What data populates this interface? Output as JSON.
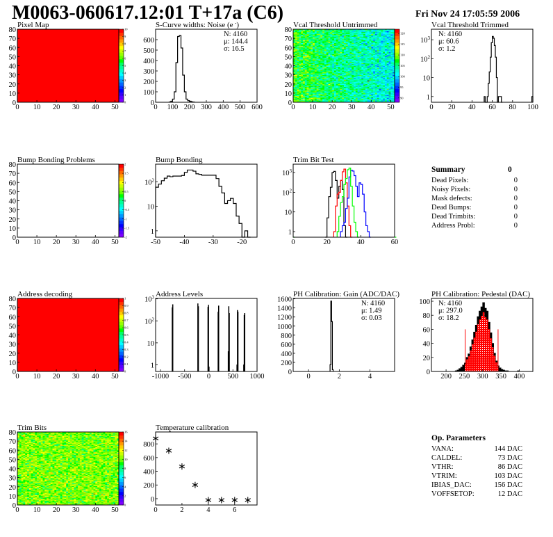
{
  "header": {
    "title": "M0063-060617.12:01 T+17a (C6)",
    "date": "Fri Nov 24 17:05:59 2006"
  },
  "palette": [
    "#7f00ff",
    "#5a00ff",
    "#3300ff",
    "#0000ff",
    "#0033ff",
    "#0066ff",
    "#0099ff",
    "#00ccff",
    "#00ffff",
    "#00ffcc",
    "#00ff99",
    "#00ff66",
    "#00ff00",
    "#66ff00",
    "#99ff00",
    "#ccff00",
    "#ffff00",
    "#ffcc00",
    "#ff9900",
    "#ff6600",
    "#ff3300",
    "#ff0000"
  ],
  "chart_data": [
    {
      "title": "Pixel Map",
      "type": "heatmap",
      "xlim": [
        0,
        52
      ],
      "ylim": [
        0,
        80
      ],
      "zlim": [
        0,
        10
      ],
      "xticks": [
        0,
        10,
        20,
        30,
        40,
        50
      ],
      "yticks": [
        0,
        10,
        20,
        30,
        40,
        50,
        60,
        70,
        80
      ],
      "zticks": [
        0,
        1,
        2,
        3,
        4,
        5,
        6,
        7,
        8,
        9,
        10
      ],
      "uniform_value": 10
    },
    {
      "title": "S-Curve widths: Noise (e",
      "title_sup": "-",
      "title_end": ")",
      "type": "bar",
      "xlim": [
        0,
        600
      ],
      "ylim": [
        0,
        700
      ],
      "xticks": [
        0,
        100,
        200,
        300,
        400,
        500,
        600
      ],
      "yticks": [
        0,
        100,
        200,
        300,
        400,
        500,
        600
      ],
      "bin_width": 10,
      "bins": [
        [
          80,
          3
        ],
        [
          90,
          10
        ],
        [
          100,
          30
        ],
        [
          110,
          100
        ],
        [
          120,
          380
        ],
        [
          130,
          630
        ],
        [
          140,
          640
        ],
        [
          150,
          520
        ],
        [
          160,
          260
        ],
        [
          170,
          100
        ],
        [
          180,
          30
        ],
        [
          190,
          15
        ],
        [
          200,
          10
        ],
        [
          210,
          4
        ],
        [
          220,
          2
        ]
      ],
      "stats": [
        {
          "text": "N: 4160",
          "color": "#000000"
        },
        {
          "text": "μ: 144.4",
          "color": "#000000"
        },
        {
          "text": "σ: 16.5",
          "color": "#000000"
        }
      ],
      "stats_pos": "top-right"
    },
    {
      "title": "Vcal Threshold Untrimmed",
      "type": "heatmap",
      "xlim": [
        0,
        52
      ],
      "ylim": [
        0,
        80
      ],
      "zlim": [
        88,
        122
      ],
      "xticks": [
        0,
        10,
        20,
        30,
        40,
        50
      ],
      "yticks": [
        0,
        10,
        20,
        30,
        40,
        50,
        60,
        70,
        80
      ],
      "zticks": [
        90,
        95,
        100,
        105,
        110,
        115,
        120
      ]
    },
    {
      "title": "Vcal Threshold Trimmed",
      "type": "bar",
      "log_y": true,
      "xlim": [
        0,
        100
      ],
      "ylim": [
        0.5,
        3600
      ],
      "xticks": [
        0,
        20,
        40,
        60,
        80,
        100
      ],
      "yticks": [
        1,
        10,
        100,
        1000
      ],
      "bin_width": 1,
      "bins": [
        [
          52,
          1
        ],
        [
          53,
          0
        ],
        [
          54,
          0
        ],
        [
          55,
          1
        ],
        [
          56,
          5
        ],
        [
          57,
          20
        ],
        [
          58,
          120
        ],
        [
          59,
          700
        ],
        [
          60,
          1500
        ],
        [
          61,
          1200
        ],
        [
          62,
          500
        ],
        [
          63,
          120
        ],
        [
          64,
          10
        ],
        [
          65,
          0
        ],
        [
          66,
          1
        ],
        [
          67,
          1
        ],
        [
          68,
          1
        ],
        [
          69,
          0
        ],
        [
          99,
          1
        ]
      ],
      "stats": [
        {
          "text": "N: 4160",
          "color": "#000000"
        },
        {
          "text": "μ: 60.6",
          "color": "#000000"
        },
        {
          "text": "σ:  1.2",
          "color": "#000000"
        }
      ],
      "stats_pos": "top-left"
    },
    {
      "title": "Bump Bonding Problems",
      "type": "heatmap",
      "xlim": [
        0,
        52
      ],
      "ylim": [
        0,
        80
      ],
      "zlim": [
        -2,
        2
      ],
      "xticks": [
        0,
        10,
        20,
        30,
        40,
        50
      ],
      "yticks": [
        0,
        10,
        20,
        30,
        40,
        50,
        60,
        70,
        80
      ],
      "zticks": [
        -2,
        -1.5,
        -1,
        -0.5,
        0,
        0.5,
        1,
        1.5,
        2
      ],
      "empty": true
    },
    {
      "title": "Bump Bonding",
      "type": "bar",
      "log_y": true,
      "xlim": [
        -50,
        -14.75
      ],
      "ylim": [
        0.55,
        520
      ],
      "xticks": [
        -50,
        -40,
        -30,
        -20
      ],
      "yticks": [
        1,
        10,
        100
      ],
      "bin_width": 1,
      "bins": [
        [
          -50,
          60
        ],
        [
          -49,
          80
        ],
        [
          -48,
          110
        ],
        [
          -47,
          140
        ],
        [
          -46,
          170
        ],
        [
          -45,
          160
        ],
        [
          -44,
          170
        ],
        [
          -43,
          170
        ],
        [
          -42,
          170
        ],
        [
          -41,
          180
        ],
        [
          -40,
          240
        ],
        [
          -39,
          300
        ],
        [
          -38,
          300
        ],
        [
          -37,
          270
        ],
        [
          -36,
          210
        ],
        [
          -35,
          200
        ],
        [
          -34,
          185
        ],
        [
          -33,
          185
        ],
        [
          -32,
          185
        ],
        [
          -31,
          185
        ],
        [
          -30,
          185
        ],
        [
          -29,
          135
        ],
        [
          -28,
          65
        ],
        [
          -27,
          35
        ],
        [
          -26,
          13
        ],
        [
          -25,
          17
        ],
        [
          -24,
          21
        ],
        [
          -23,
          13
        ],
        [
          -22,
          4
        ],
        [
          -21,
          2
        ],
        [
          -20,
          0
        ],
        [
          -19,
          1
        ],
        [
          -18,
          0
        ]
      ]
    },
    {
      "title": "Trim Bit Test",
      "type": "bar",
      "log_y": true,
      "xlim": [
        0,
        60
      ],
      "ylim": [
        0.52,
        2680
      ],
      "xticks": [
        0,
        20,
        40,
        60
      ],
      "yticks": [
        1,
        10,
        100,
        1000
      ],
      "bin_width": 1,
      "series": [
        {
          "color": "#000000",
          "bins": [
            [
              19,
              0
            ],
            [
              20,
              5
            ],
            [
              21,
              60
            ],
            [
              22,
              180
            ],
            [
              23,
              1000
            ],
            [
              24,
              1150
            ],
            [
              25,
              400
            ],
            [
              26,
              50
            ],
            [
              27,
              200
            ],
            [
              28,
              400
            ],
            [
              29,
              140
            ],
            [
              30,
              2
            ],
            [
              31,
              0
            ]
          ]
        },
        {
          "color": "#ff0000",
          "bins": [
            [
              24,
              1
            ],
            [
              25,
              20
            ],
            [
              26,
              80
            ],
            [
              27,
              100
            ],
            [
              28,
              400
            ],
            [
              29,
              1100
            ],
            [
              30,
              1500
            ],
            [
              31,
              300
            ],
            [
              32,
              20
            ],
            [
              33,
              2
            ],
            [
              34,
              0
            ]
          ]
        },
        {
          "color": "#0000ff",
          "bins": [
            [
              28,
              1
            ],
            [
              29,
              2
            ],
            [
              30,
              3
            ],
            [
              31,
              15
            ],
            [
              32,
              50
            ],
            [
              33,
              600
            ],
            [
              34,
              1300
            ],
            [
              35,
              1200
            ],
            [
              36,
              700
            ],
            [
              37,
              200
            ],
            [
              38,
              60
            ],
            [
              39,
              300
            ],
            [
              40,
              250
            ],
            [
              41,
              80
            ],
            [
              42,
              10
            ],
            [
              43,
              2
            ],
            [
              44,
              1
            ],
            [
              45,
              0
            ]
          ]
        },
        {
          "color": "#00ff00",
          "bins": [
            [
              0,
              0
            ],
            [
              26,
              1
            ],
            [
              27,
              6
            ],
            [
              28,
              30
            ],
            [
              29,
              60
            ],
            [
              30,
              250
            ],
            [
              31,
              500
            ],
            [
              32,
              1400
            ],
            [
              33,
              1700
            ],
            [
              34,
              200
            ],
            [
              35,
              20
            ],
            [
              36,
              3
            ],
            [
              37,
              1
            ],
            [
              38,
              0
            ],
            [
              60,
              0
            ]
          ]
        }
      ]
    },
    {
      "title": "Address decoding",
      "type": "heatmap",
      "xlim": [
        0,
        52
      ],
      "ylim": [
        0,
        80
      ],
      "zlim": [
        0,
        1
      ],
      "xticks": [
        0,
        10,
        20,
        30,
        40,
        50
      ],
      "yticks": [
        0,
        10,
        20,
        30,
        40,
        50,
        60,
        70,
        80
      ],
      "zticks": [
        0,
        0.1,
        0.2,
        0.3,
        0.4,
        0.5,
        0.6,
        0.7,
        0.8,
        0.9,
        1
      ],
      "uniform_value": 1
    },
    {
      "title": "Address Levels",
      "type": "bar",
      "log_y": true,
      "filled": true,
      "xlim": [
        -1100,
        1000
      ],
      "ylim": [
        0.5,
        1050
      ],
      "xticks": [
        -1000,
        -500,
        0,
        500,
        1000
      ],
      "yticks": [
        1,
        10,
        100,
        1000
      ],
      "bin_width": 10,
      "bins": [
        [
          -760,
          400
        ],
        [
          -750,
          550
        ],
        [
          -230,
          600
        ],
        [
          -220,
          450
        ],
        [
          -20,
          420
        ],
        [
          -10,
          520
        ],
        [
          0,
          0.8
        ],
        [
          190,
          250
        ],
        [
          200,
          480
        ],
        [
          400,
          4
        ],
        [
          410,
          450
        ],
        [
          420,
          220
        ],
        [
          580,
          1
        ],
        [
          590,
          300
        ],
        [
          600,
          250
        ],
        [
          720,
          1
        ],
        [
          730,
          180
        ],
        [
          740,
          220
        ]
      ]
    },
    {
      "title": "PH Calibration: Gain (ADC/DAC)",
      "type": "bar",
      "xlim": [
        -1,
        5.6
      ],
      "ylim": [
        0,
        1610
      ],
      "xticks": [
        0,
        2,
        4
      ],
      "yticks": [
        0,
        200,
        400,
        600,
        800,
        1000,
        1200,
        1400,
        1600
      ],
      "bin_width": 0.05,
      "bins": [
        [
          1.4,
          150
        ],
        [
          1.45,
          1550
        ],
        [
          1.5,
          1100
        ],
        [
          1.55,
          40
        ]
      ],
      "stats": [
        {
          "text": "N: 4160",
          "color": "#000000"
        },
        {
          "text": "μ: 1.49",
          "color": "#000000"
        },
        {
          "text": "σ: 0.03",
          "color": "#000000"
        }
      ],
      "stats_pos": "top-right"
    },
    {
      "title": "PH Calibration: Pedestal (DAC)",
      "type": "bar",
      "filled": true,
      "xlim": [
        160,
        437
      ],
      "ylim": [
        0,
        104
      ],
      "xticks": [
        200,
        250,
        300,
        350,
        400
      ],
      "yticks": [
        0,
        20,
        40,
        60,
        80,
        100
      ],
      "bin_width": 5,
      "bins": [
        [
          225,
          1
        ],
        [
          230,
          2
        ],
        [
          235,
          4
        ],
        [
          240,
          6
        ],
        [
          245,
          9
        ],
        [
          250,
          12
        ],
        [
          255,
          20
        ],
        [
          260,
          25
        ],
        [
          265,
          35
        ],
        [
          270,
          45
        ],
        [
          275,
          56
        ],
        [
          280,
          66
        ],
        [
          285,
          78
        ],
        [
          290,
          86
        ],
        [
          295,
          92
        ],
        [
          300,
          98
        ],
        [
          305,
          90
        ],
        [
          310,
          86
        ],
        [
          315,
          70
        ],
        [
          320,
          55
        ],
        [
          325,
          40
        ],
        [
          330,
          26
        ],
        [
          335,
          15
        ],
        [
          340,
          8
        ],
        [
          345,
          5
        ],
        [
          350,
          3
        ],
        [
          355,
          2
        ],
        [
          360,
          1
        ],
        [
          365,
          1
        ],
        [
          395,
          1
        ]
      ],
      "fit": {
        "mean": 297.0,
        "sigma": 18.2,
        "range": [
          252,
          342
        ],
        "color": "#ff0000"
      },
      "stats": [
        {
          "text": "N: 4160",
          "color": "#000000"
        },
        {
          "text": "μ: 297.0",
          "color": "#ff0000"
        },
        {
          "text": "σ: 18.2",
          "color": "#ff0000"
        }
      ],
      "stats_pos": "top-left"
    },
    {
      "title": "Trim Bits",
      "type": "heatmap",
      "xlim": [
        0,
        52
      ],
      "ylim": [
        0,
        80
      ],
      "zlim": [
        0,
        16
      ],
      "xticks": [
        0,
        10,
        20,
        30,
        40,
        50
      ],
      "yticks": [
        0,
        10,
        20,
        30,
        40,
        50,
        60,
        70,
        80
      ],
      "zticks": [
        0,
        2,
        4,
        6,
        8,
        10,
        12,
        14,
        16
      ]
    },
    {
      "title": "Temperature calibration",
      "type": "scatter",
      "xlim": [
        0,
        7.7
      ],
      "ylim": [
        -92,
        974
      ],
      "xticks": [
        0,
        2,
        4,
        6
      ],
      "yticks": [
        0,
        200,
        400,
        600,
        800
      ],
      "marker": "asterisk",
      "points": [
        [
          0,
          880
        ],
        [
          1,
          700
        ],
        [
          2,
          470
        ],
        [
          3,
          200
        ],
        [
          4,
          -20
        ],
        [
          5,
          -20
        ],
        [
          6,
          -20
        ],
        [
          7,
          -20
        ]
      ]
    }
  ],
  "summary": {
    "title": "Summary",
    "total": "0",
    "rows": [
      {
        "label": "Dead Pixels:",
        "value": "0"
      },
      {
        "label": "Noisy Pixels:",
        "value": "0"
      },
      {
        "label": "Mask defects:",
        "value": "0"
      },
      {
        "label": "Dead Bumps:",
        "value": "0"
      },
      {
        "label": "Dead Trimbits:",
        "value": "0"
      },
      {
        "label": "Address Probl:",
        "value": "0"
      }
    ]
  },
  "op_parameters": {
    "title": "Op. Parameters",
    "rows": [
      {
        "label": "VANA:",
        "value": "144 DAC"
      },
      {
        "label": "CALDEL:",
        "value": "73 DAC"
      },
      {
        "label": "VTHR:",
        "value": "86 DAC"
      },
      {
        "label": "VTRIM:",
        "value": "103 DAC"
      },
      {
        "label": "IBIAS_DAC:",
        "value": "156 DAC"
      },
      {
        "label": "VOFFSETOP:",
        "value": "12 DAC"
      }
    ]
  }
}
